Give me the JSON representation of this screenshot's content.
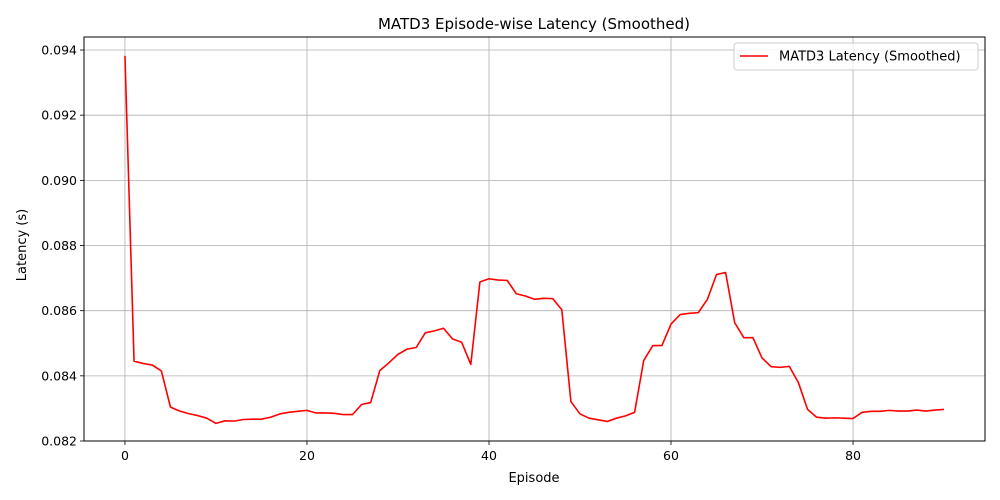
{
  "chart_data": {
    "type": "line",
    "title": "MATD3 Episode-wise Latency (Smoothed)",
    "xlabel": "Episode",
    "ylabel": "Latency (s)",
    "xlim": [
      -4.5,
      94.5
    ],
    "ylim": [
      0.082,
      0.0944
    ],
    "x_ticks": [
      0,
      20,
      40,
      60,
      80
    ],
    "y_ticks": [
      0.082,
      0.084,
      0.086,
      0.088,
      0.09,
      0.092,
      0.094
    ],
    "x_tick_labels": [
      "0",
      "20",
      "40",
      "60",
      "80"
    ],
    "y_tick_labels": [
      "0.082",
      "0.084",
      "0.086",
      "0.088",
      "0.090",
      "0.092",
      "0.094"
    ],
    "grid": true,
    "legend_position": "top-right",
    "series": [
      {
        "name": "MATD3 Latency (Smoothed)",
        "color": "#ff0000",
        "x": [
          0,
          1,
          2,
          3,
          4,
          5,
          6,
          7,
          8,
          9,
          10,
          11,
          12,
          13,
          14,
          15,
          16,
          17,
          18,
          19,
          20,
          21,
          22,
          23,
          24,
          25,
          26,
          27,
          28,
          29,
          30,
          31,
          32,
          33,
          34,
          35,
          36,
          37,
          38,
          39,
          40,
          41,
          42,
          43,
          44,
          45,
          46,
          47,
          48,
          49,
          50,
          51,
          52,
          53,
          54,
          55,
          56,
          57,
          58,
          59,
          60,
          61,
          62,
          63,
          64,
          65,
          66,
          67,
          68,
          69,
          70,
          71,
          72,
          73,
          74,
          75,
          76,
          77,
          78,
          79,
          80,
          81,
          82,
          83,
          84,
          85,
          86,
          87,
          88,
          89,
          90
        ],
        "values": [
          0.09382,
          0.08445,
          0.08438,
          0.08433,
          0.08415,
          0.08304,
          0.08292,
          0.08284,
          0.08278,
          0.0827,
          0.08254,
          0.08262,
          0.08261,
          0.08266,
          0.08267,
          0.08267,
          0.08273,
          0.08283,
          0.08288,
          0.08291,
          0.08294,
          0.08286,
          0.08286,
          0.08285,
          0.08281,
          0.08281,
          0.08312,
          0.08318,
          0.08416,
          0.0844,
          0.08466,
          0.08482,
          0.08487,
          0.08532,
          0.08538,
          0.08546,
          0.08513,
          0.08503,
          0.08435,
          0.08688,
          0.08698,
          0.08694,
          0.08693,
          0.08652,
          0.08645,
          0.08635,
          0.08638,
          0.08637,
          0.08603,
          0.08321,
          0.08283,
          0.0827,
          0.08265,
          0.0826,
          0.0827,
          0.08277,
          0.08288,
          0.08447,
          0.08493,
          0.08493,
          0.08559,
          0.08588,
          0.08592,
          0.08594,
          0.08635,
          0.08711,
          0.08717,
          0.08563,
          0.08517,
          0.08517,
          0.08455,
          0.08428,
          0.08426,
          0.08429,
          0.08379,
          0.08297,
          0.08273,
          0.0827,
          0.08271,
          0.0827,
          0.08269,
          0.08288,
          0.08291,
          0.08291,
          0.08294,
          0.08292,
          0.08292,
          0.08295,
          0.08292,
          0.08295,
          0.08297
        ]
      }
    ]
  }
}
